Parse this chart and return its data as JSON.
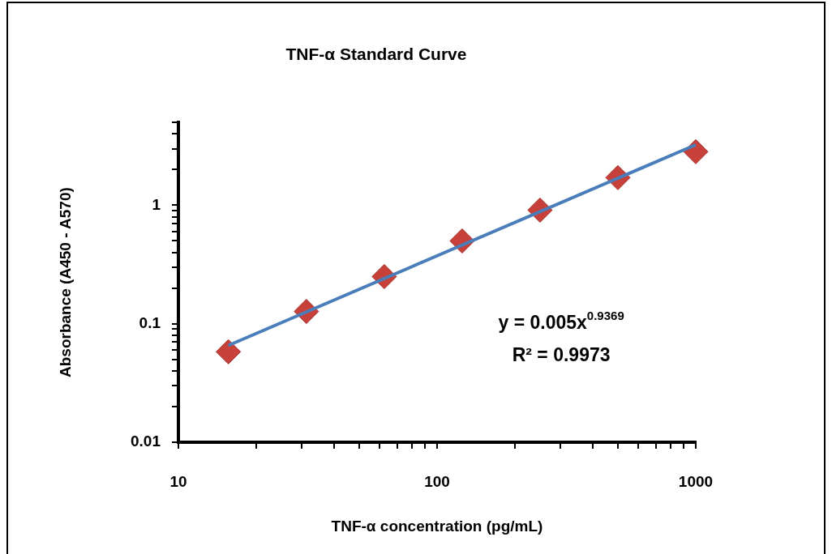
{
  "chart_data": {
    "type": "scatter",
    "title": "TNF-α Standard Curve",
    "xlabel": "TNF-α concentration (pg/mL)",
    "ylabel": "Absorbance (A450 - A570)",
    "log": "xy",
    "grid": false,
    "legend": false,
    "marker": "diamond",
    "xlim": [
      10,
      1000
    ],
    "ylim": [
      0.01,
      5
    ],
    "xticks": [
      10,
      {
        "value": 20,
        "label": null
      },
      {
        "value": 30,
        "label": null
      },
      {
        "value": 40,
        "label": null
      },
      {
        "value": 50,
        "label": null
      },
      {
        "value": 60,
        "label": null
      },
      {
        "value": 70,
        "label": null
      },
      {
        "value": 80,
        "label": null
      },
      {
        "value": 90,
        "label": null
      },
      100,
      {
        "value": 200,
        "label": null
      },
      {
        "value": 300,
        "label": null
      },
      {
        "value": 400,
        "label": null
      },
      {
        "value": 500,
        "label": null
      },
      {
        "value": 600,
        "label": null
      },
      {
        "value": 700,
        "label": null
      },
      {
        "value": 800,
        "label": null
      },
      {
        "value": 900,
        "label": null
      },
      1000
    ],
    "yticks": [
      0.01,
      {
        "value": 0.02,
        "label": null
      },
      {
        "value": 0.03,
        "label": null
      },
      {
        "value": 0.04,
        "label": null
      },
      {
        "value": 0.05,
        "label": null
      },
      {
        "value": 0.06,
        "label": null
      },
      {
        "value": 0.07,
        "label": null
      },
      {
        "value": 0.08,
        "label": null
      },
      {
        "value": 0.09,
        "label": null
      },
      0.1,
      {
        "value": 0.2,
        "label": null
      },
      {
        "value": 0.3,
        "label": null
      },
      {
        "value": 0.4,
        "label": null
      },
      {
        "value": 0.5,
        "label": null
      },
      {
        "value": 0.6,
        "label": null
      },
      {
        "value": 0.7,
        "label": null
      },
      {
        "value": 0.8,
        "label": null
      },
      {
        "value": 0.9,
        "label": null
      },
      1,
      {
        "value": 2,
        "label": null
      },
      {
        "value": 3,
        "label": null
      },
      {
        "value": 4,
        "label": null
      },
      {
        "value": 5,
        "label": null
      }
    ],
    "x": [
      15.6,
      31.25,
      62.5,
      125,
      250,
      500,
      1000
    ],
    "series": [
      {
        "type": "scatter",
        "color": "#c8403a",
        "values": [
          0.058,
          0.127,
          0.25,
          0.5,
          0.91,
          1.71,
          2.83
        ]
      },
      {
        "type": "line",
        "marker": "none",
        "color": "#4a7ebb",
        "x": [
          15.6,
          1000
        ],
        "values": [
          0.0656,
          3.24
        ]
      }
    ],
    "annotations": [
      "y = 0.005x$^{0.9369}$",
      "R² = 0.9973"
    ]
  }
}
